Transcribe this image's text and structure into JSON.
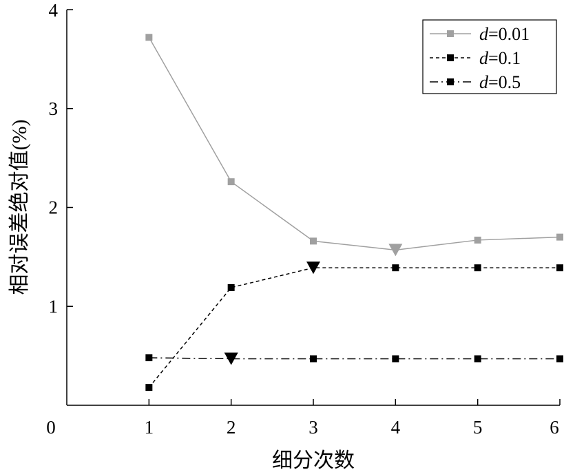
{
  "chart_data": {
    "type": "line",
    "xlabel": "细分次数",
    "ylabel": "相对误差绝对值(%)",
    "xlim": [
      0,
      6
    ],
    "ylim": [
      0,
      4
    ],
    "x_ticks": [
      0,
      1,
      2,
      3,
      4,
      5,
      6
    ],
    "x_tick_labels": [
      "0",
      "1",
      "2",
      "3",
      "4",
      "5",
      "6"
    ],
    "y_ticks": [
      1,
      2,
      3,
      4
    ],
    "y_tick_labels": [
      "1",
      "2",
      "3",
      "4"
    ],
    "grid": false,
    "legend_position": "top-right",
    "x": [
      1,
      2,
      3,
      4,
      5,
      6
    ],
    "series": [
      {
        "name": "d=0.01",
        "legend_var": "d",
        "legend_value": "=0.01",
        "values": [
          3.72,
          2.26,
          1.66,
          1.57,
          1.67,
          1.7
        ],
        "color": "#a0a0a0",
        "line_style": "solid",
        "marker": "square",
        "highlight_index": 3
      },
      {
        "name": "d=0.1",
        "legend_var": "d",
        "legend_value": "=0.1",
        "values": [
          0.18,
          1.19,
          1.39,
          1.39,
          1.39,
          1.39
        ],
        "color": "#000000",
        "line_style": "dashed",
        "marker": "square",
        "highlight_index": 2
      },
      {
        "name": "d=0.5",
        "legend_var": "d",
        "legend_value": "=0.5",
        "values": [
          0.48,
          0.47,
          0.47,
          0.47,
          0.47,
          0.47
        ],
        "color": "#000000",
        "line_style": "dashdot",
        "marker": "square",
        "highlight_index": 1
      }
    ]
  }
}
